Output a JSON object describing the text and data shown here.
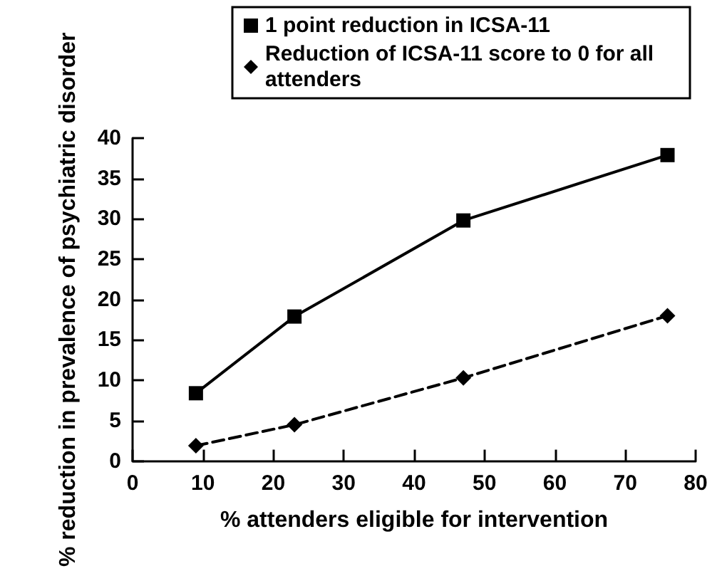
{
  "chart_data": {
    "type": "line",
    "xlabel": "% attenders eligible for intervention",
    "ylabel": "% reduction in prevalence of psychiatric disorder",
    "xlim": [
      0,
      80
    ],
    "xticks": [
      0,
      10,
      20,
      30,
      40,
      50,
      60,
      70,
      80
    ],
    "ylim": [
      0,
      40
    ],
    "yticks": [
      0,
      5,
      10,
      15,
      20,
      25,
      30,
      35,
      40
    ],
    "grid": false,
    "legend": "top",
    "series": [
      {
        "name": "1 point reduction in ICSA-11",
        "color": "#000000",
        "x": [
          9,
          23,
          47,
          76
        ],
        "values": [
          8.4,
          17.9,
          29.8,
          37.9
        ],
        "marker": "square",
        "line_style": "solid"
      },
      {
        "name": "Reduction of ICSA-11 score to 0 for all attenders",
        "color": "#000000",
        "x": [
          9,
          23,
          47,
          76
        ],
        "values": [
          1.9,
          4.5,
          10.3,
          18.0
        ],
        "marker": "diamond",
        "line_style": "dashed"
      }
    ]
  }
}
